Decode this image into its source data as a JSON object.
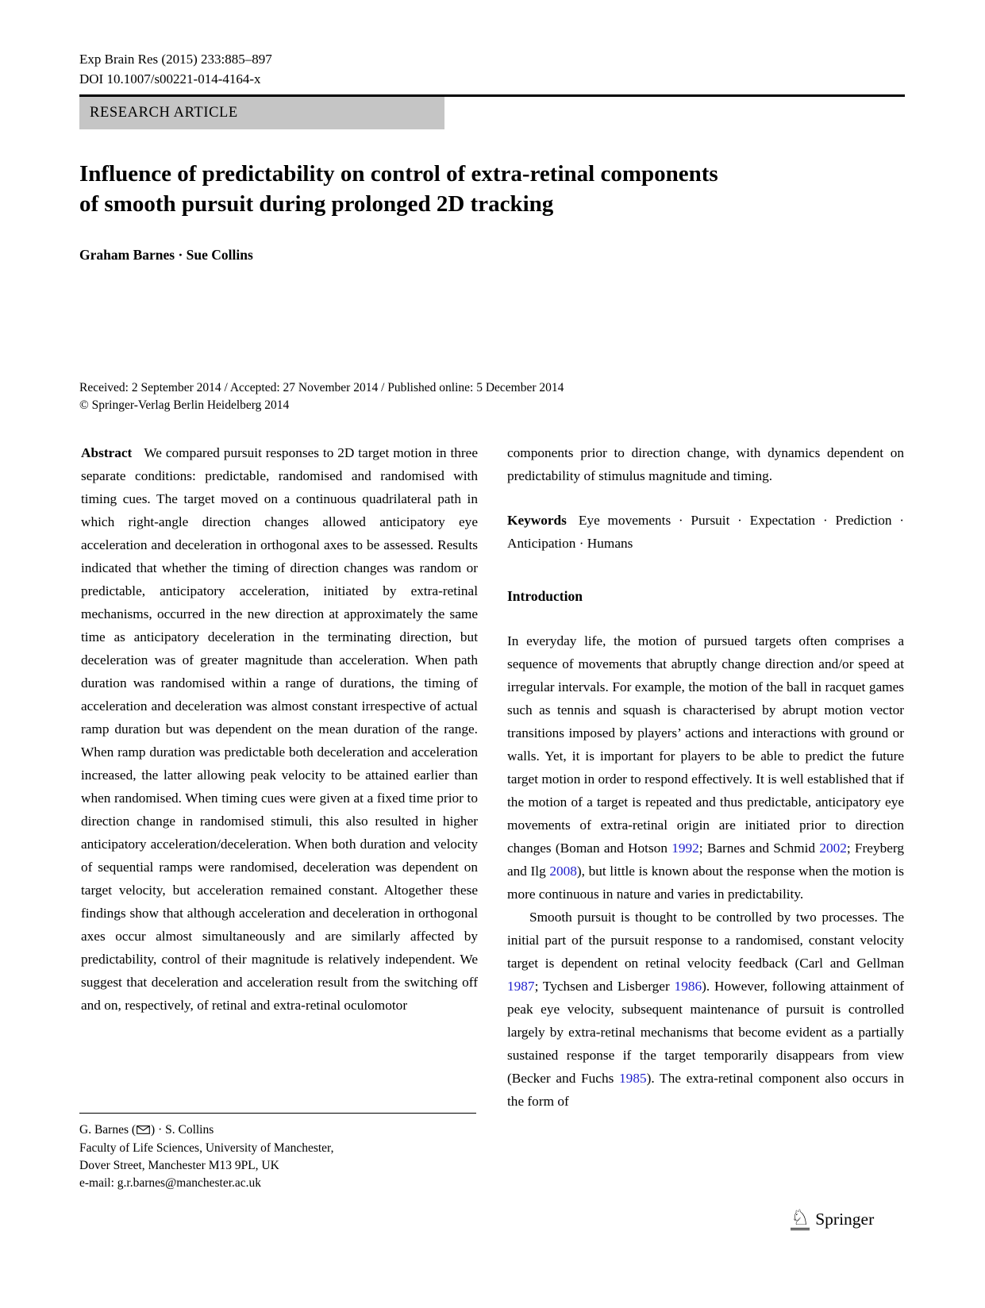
{
  "header": {
    "journal_ref": "Exp Brain Res (2015) 233:885–897",
    "doi": "DOI 10.1007/s00221-014-4164-x",
    "article_type": "RESEARCH ARTICLE"
  },
  "title": {
    "line1": "Influence of predictability on control of extra-retinal components",
    "line2": "of smooth pursuit during prolonged 2D tracking"
  },
  "authors": "Graham Barnes · Sue Collins",
  "dates_line": "Received: 2 September 2014 / Accepted: 27 November 2014 / Published online: 5 December 2014",
  "copyright_line": "© Springer-Verlag Berlin Heidelberg 2014",
  "abstract": {
    "label": "Abstract",
    "text_left_column": "We compared pursuit responses to 2D target motion in three separate conditions: predictable, randomised and randomised with timing cues. The target moved on a continuous quadrilateral path in which right-angle direction changes allowed anticipatory eye acceleration and deceleration in orthogonal axes to be assessed. Results indicated that whether the timing of direction changes was random or predictable, anticipatory acceleration, initiated by extra-retinal mechanisms, occurred in the new direction at approximately the same time as anticipatory deceleration in the terminating direction, but deceleration was of greater magnitude than acceleration. When path duration was randomised within a range of durations, the timing of acceleration and deceleration was almost constant irrespective of actual ramp duration but was dependent on the mean duration of the range. When ramp duration was predictable both deceleration and acceleration increased, the latter allowing peak velocity to be attained earlier than when randomised. When timing cues were given at a fixed time prior to direction change in randomised stimuli, this also resulted in higher anticipatory acceleration/deceleration. When both duration and velocity of sequential ramps were randomised, deceleration was dependent on target velocity, but acceleration remained constant. Altogether these findings show that although acceleration and deceleration in orthogonal axes occur almost simultaneously and are similarly affected by predictability, control of their magnitude is relatively independent. We suggest that deceleration and acceleration result from the switching off and on, respectively, of retinal and extra-retinal oculomotor",
    "text_right_column": "components prior to direction change, with dynamics dependent on predictability of stimulus magnitude and timing."
  },
  "keywords": {
    "label": "Keywords",
    "text": "Eye movements · Pursuit · Expectation · Prediction · Anticipation · Humans"
  },
  "introduction": {
    "heading": "Introduction",
    "para1_segments": [
      {
        "text": "In everyday life, the motion of pursued targets often comprises a sequence of movements that abruptly change direction and/or speed at irregular intervals. For example, the motion of the ball in racquet games such as tennis and squash is characterised by abrupt motion vector transitions imposed by players’ actions and interactions with ground or walls. Yet, it is important for players to be able to predict the future target motion in order to respond effectively. It is well established that if the motion of a target is repeated and thus predictable, anticipatory eye movements of extra-retinal origin are initiated prior to direction changes (Boman and Hotson "
      },
      {
        "text": "1992",
        "cite": true
      },
      {
        "text": "; Barnes and Schmid "
      },
      {
        "text": "2002",
        "cite": true
      },
      {
        "text": "; Freyberg and Ilg "
      },
      {
        "text": "2008",
        "cite": true
      },
      {
        "text": "), but little is known about the response when the motion is more continuous in nature and varies in predictability."
      }
    ],
    "para2_segments": [
      {
        "text": "Smooth pursuit is thought to be controlled by two processes. The initial part of the pursuit response to a randomised, constant velocity target is dependent on retinal velocity feedback (Carl and Gellman "
      },
      {
        "text": "1987",
        "cite": true
      },
      {
        "text": "; Tychsen and Lisberger "
      },
      {
        "text": "1986",
        "cite": true
      },
      {
        "text": "). However, following attainment of peak eye velocity, subsequent maintenance of pursuit is controlled largely by extra-retinal mechanisms that become evident as a partially sustained response if the target temporarily disappears from view (Becker and Fuchs "
      },
      {
        "text": "1985",
        "cite": true
      },
      {
        "text": "). The extra-retinal component also occurs in the form of"
      }
    ]
  },
  "footnote": {
    "line1_pre": "G. Barnes (",
    "line1_post": ") · S. Collins",
    "line2": "Faculty of Life Sciences, University of Manchester,",
    "line3": "Dover Street, Manchester M13 9PL, UK",
    "line4": "e-mail: g.r.barnes@manchester.ac.uk"
  },
  "publisher": {
    "logo_glyph": "♘",
    "name": "Springer"
  },
  "colors": {
    "banner_gray": "#c5c5c5",
    "citation_blue": "#2222cc"
  }
}
